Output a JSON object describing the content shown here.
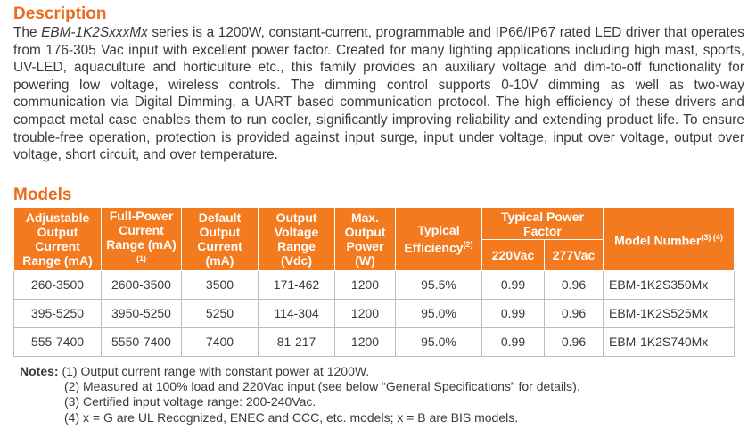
{
  "description": {
    "heading": "Description",
    "paragraph": [
      "The ",
      "EBM-1K2SxxxMx",
      " series is a 1200W, constant-current, programmable and IP66/IP67 rated LED driver that operates from 176-305 Vac input with excellent power factor. Created for many lighting applications including high mast, sports, UV-LED, aquaculture and horticulture etc., this family provides an auxiliary voltage and dim-to-off functionality for powering low voltage, wireless controls. The dimming control supports 0-10V dimming as well as two-way communication via Digital Dimming, a UART based communication protocol. The high efficiency of these drivers and compact metal case enables them to run cooler, significantly improving reliability and extending product life. To ensure trouble-free operation, protection is provided against input surge, input under voltage, input over voltage, output over voltage, short circuit, and over temperature."
    ]
  },
  "models": {
    "heading": "Models",
    "table": {
      "headers": [
        {
          "text": "Adjustable Output Current Range (mA)"
        },
        {
          "text": "Full-Power Current Range (mA)",
          "sup": "(1)"
        },
        {
          "text": "Default Output Current (mA)"
        },
        {
          "text": "Output Voltage Range (Vdc)"
        },
        {
          "text": "Max. Output Power (W)"
        },
        {
          "text": "Typical Efficiency",
          "sup": "(2)"
        },
        {
          "text": "Typical Power Factor",
          "sub": [
            "220Vac",
            "277Vac"
          ]
        },
        {
          "text": "Model Number",
          "sup": "(3) (4)"
        }
      ],
      "rows": [
        [
          "260-3500",
          "2600-3500",
          "3500",
          "171-462",
          "1200",
          "95.5%",
          "0.99",
          "0.96",
          "EBM-1K2S350Mx"
        ],
        [
          "395-5250",
          "3950-5250",
          "5250",
          "114-304",
          "1200",
          "95.0%",
          "0.99",
          "0.96",
          "EBM-1K2S525Mx"
        ],
        [
          "555-7400",
          "5550-7400",
          "7400",
          "81-217",
          "1200",
          "95.0%",
          "0.99",
          "0.96",
          "EBM-1K2S740Mx"
        ]
      ]
    }
  },
  "notes": {
    "label": "Notes:",
    "items": [
      "(1) Output current range with constant power at 1200W.",
      "(2) Measured at 100% load and 220Vac input (see below “General Specifications” for details).",
      "(3) Certified input voltage range: 200-240Vac.",
      "(4) x = G are UL Recognized, ENEC and CCC, etc. models; x = B are BIS models."
    ]
  }
}
